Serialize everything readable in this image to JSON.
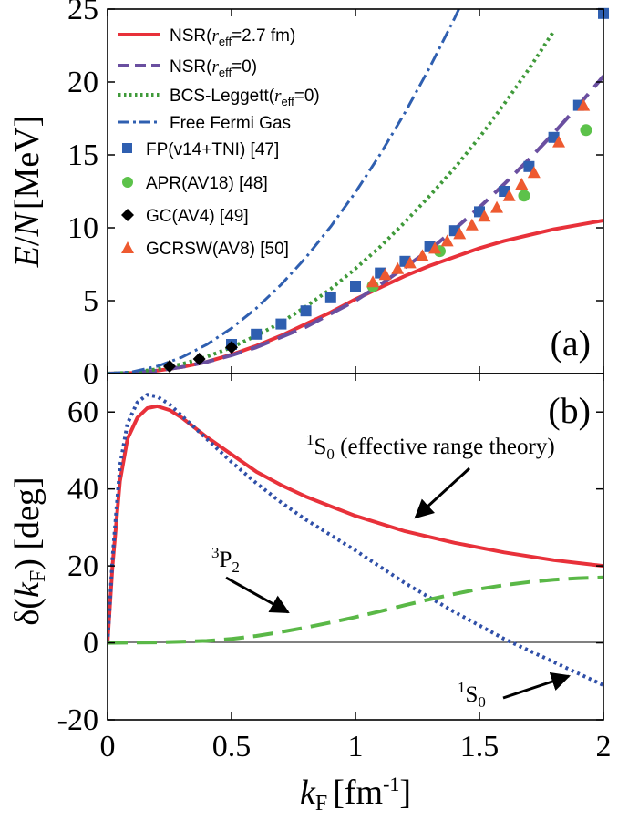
{
  "chart_data": [
    {
      "panel_label": "(a)",
      "type": "line",
      "ylabel": "E/N [MeV]",
      "ylabel_parts": {
        "sym1": "E",
        "slash": "/",
        "sym2": "N",
        "unit": "[MeV]"
      },
      "xlim": [
        0,
        2
      ],
      "ylim": [
        0,
        25
      ],
      "yticks": [
        "0",
        "5",
        "10",
        "15",
        "20",
        "25"
      ],
      "series": [
        {
          "name": "NSR(r_eff=2.7 fm)",
          "legend_pre": "NSR(",
          "legend_sym": "r",
          "legend_sub": "eff",
          "legend_post": "=2.7 fm)",
          "style": "solid",
          "color": "#e8313a",
          "x": [
            0,
            0.1,
            0.2,
            0.3,
            0.4,
            0.5,
            0.6,
            0.7,
            0.8,
            0.9,
            1.0,
            1.1,
            1.2,
            1.3,
            1.4,
            1.5,
            1.6,
            1.7,
            1.8,
            1.9,
            2.0
          ],
          "y": [
            0,
            0.05,
            0.2,
            0.45,
            0.8,
            1.3,
            1.9,
            2.6,
            3.4,
            4.2,
            5.1,
            5.9,
            6.7,
            7.4,
            8.0,
            8.6,
            9.1,
            9.5,
            9.9,
            10.2,
            10.5
          ]
        },
        {
          "name": "NSR(r_eff=0)",
          "legend_pre": "NSR(",
          "legend_sym": "r",
          "legend_sub": "eff",
          "legend_post": "=0)",
          "style": "dash",
          "color": "#6a4fa0",
          "x": [
            0,
            0.1,
            0.2,
            0.3,
            0.4,
            0.5,
            0.6,
            0.7,
            0.8,
            0.9,
            1.0,
            1.1,
            1.2,
            1.3,
            1.4,
            1.5,
            1.6,
            1.7,
            1.8,
            1.9,
            2.0
          ],
          "y": [
            0,
            0.05,
            0.2,
            0.45,
            0.8,
            1.25,
            1.8,
            2.5,
            3.2,
            4.1,
            5.0,
            6.1,
            7.3,
            8.5,
            9.9,
            11.4,
            13.0,
            14.7,
            16.5,
            18.4,
            20.4
          ]
        },
        {
          "name": "BCS-Leggett(r_eff=0)",
          "legend_pre": "BCS-Leggett(",
          "legend_sym": "r",
          "legend_sub": "eff",
          "legend_post": "=0)",
          "style": "dot",
          "color": "#3f9a3a",
          "x": [
            0,
            0.1,
            0.2,
            0.3,
            0.4,
            0.5,
            0.6,
            0.7,
            0.8,
            0.9,
            1.0,
            1.1,
            1.2,
            1.3,
            1.4,
            1.5,
            1.6,
            1.7,
            1.8
          ],
          "y": [
            0,
            0.07,
            0.3,
            0.65,
            1.15,
            1.8,
            2.6,
            3.5,
            4.6,
            5.8,
            7.2,
            8.7,
            10.4,
            12.2,
            14.1,
            16.2,
            18.5,
            20.9,
            23.5
          ]
        },
        {
          "name": "Free Fermi Gas",
          "style": "dashdot",
          "color": "#2f5fb0",
          "x": [
            0,
            0.1,
            0.2,
            0.3,
            0.4,
            0.5,
            0.6,
            0.7,
            0.8,
            0.9,
            1.0,
            1.1,
            1.2,
            1.3,
            1.4,
            1.5
          ],
          "y": [
            0,
            0.12,
            0.5,
            1.12,
            1.99,
            3.11,
            4.48,
            6.1,
            7.96,
            10.08,
            12.44,
            15.05,
            17.91,
            21.02,
            24.38,
            27.99
          ]
        }
      ],
      "markers": [
        {
          "name": "FP(v14+TNI) [47]",
          "shape": "square",
          "color": "#2f5fb0",
          "x": [
            0.5,
            0.6,
            0.7,
            0.8,
            0.9,
            1.0,
            1.1,
            1.2,
            1.3,
            1.4,
            1.5,
            1.6,
            1.7,
            1.8,
            1.9,
            2.0
          ],
          "y": [
            2.0,
            2.7,
            3.4,
            4.3,
            5.2,
            6.0,
            6.9,
            7.7,
            8.7,
            9.8,
            11.1,
            12.5,
            14.2,
            16.2,
            18.4,
            24.7
          ]
        },
        {
          "name": "APR(AV18) [48]",
          "shape": "circle",
          "color": "#5cc24a",
          "x": [
            1.07,
            1.34,
            1.68,
            1.93
          ],
          "y": [
            6.0,
            8.4,
            12.2,
            16.7
          ]
        },
        {
          "name": "GC(AV4) [49]",
          "shape": "diamond",
          "color": "#000000",
          "x": [
            0.25,
            0.37,
            0.5
          ],
          "y": [
            0.5,
            1.0,
            1.8
          ]
        },
        {
          "name": "GCRSW(AV8) [50]",
          "shape": "triangle",
          "color": "#ee5a30",
          "x": [
            1.07,
            1.12,
            1.17,
            1.22,
            1.27,
            1.32,
            1.37,
            1.42,
            1.47,
            1.52,
            1.57,
            1.62,
            1.67,
            1.72,
            1.82,
            1.92
          ],
          "y": [
            6.3,
            6.8,
            7.2,
            7.6,
            8.1,
            8.6,
            9.1,
            9.6,
            10.2,
            10.8,
            11.4,
            12.2,
            13.0,
            13.8,
            15.9,
            18.4
          ]
        }
      ],
      "legend": "top-left"
    },
    {
      "panel_label": "(b)",
      "type": "line",
      "xlabel": "k_F [fm^-1]",
      "xlabel_parts": {
        "sym": "k",
        "sub": "F",
        "unit": "[fm",
        "exp": "-1",
        "close": "]"
      },
      "ylabel": "δ(k_F) [deg]",
      "ylabel_parts": {
        "pre": "δ(",
        "sym": "k",
        "sub": "F",
        "post": ") [deg]"
      },
      "xlim": [
        0,
        2
      ],
      "ylim": [
        -20,
        70
      ],
      "xticks": [
        "0",
        "0.5",
        "1",
        "1.5",
        "2"
      ],
      "yticks": [
        "-20",
        "0",
        "20",
        "40",
        "60"
      ],
      "series": [
        {
          "name": "1S0 (effective range theory)",
          "style": "solid",
          "color": "#e8313a",
          "x": [
            0,
            0.02,
            0.05,
            0.08,
            0.12,
            0.16,
            0.2,
            0.25,
            0.3,
            0.4,
            0.5,
            0.6,
            0.7,
            0.8,
            0.9,
            1.0,
            1.2,
            1.4,
            1.6,
            1.8,
            2.0
          ],
          "y": [
            0,
            20,
            42,
            53,
            58.5,
            61,
            61.5,
            60.5,
            58.5,
            53.5,
            49,
            44.5,
            41,
            38,
            35.5,
            33,
            29,
            26,
            23.5,
            21.5,
            20
          ]
        },
        {
          "name": "1S0",
          "style": "dot",
          "color": "#2f4fa8",
          "x": [
            0,
            0.02,
            0.05,
            0.08,
            0.12,
            0.16,
            0.2,
            0.25,
            0.3,
            0.4,
            0.5,
            0.6,
            0.7,
            0.8,
            0.9,
            1.0,
            1.2,
            1.4,
            1.6,
            1.8,
            2.0
          ],
          "y": [
            0,
            22,
            46,
            57,
            62.5,
            64.5,
            64,
            62,
            59,
            53,
            47,
            41.5,
            36.5,
            32,
            28,
            24,
            15.5,
            8,
            1,
            -5,
            -11
          ]
        },
        {
          "name": "3P2",
          "style": "dash",
          "color": "#5ab847",
          "x": [
            0,
            0.2,
            0.4,
            0.5,
            0.6,
            0.7,
            0.8,
            0.9,
            1.0,
            1.1,
            1.2,
            1.3,
            1.4,
            1.5,
            1.6,
            1.7,
            1.8,
            1.9,
            2.0
          ],
          "y": [
            0,
            0.1,
            0.5,
            1.0,
            1.8,
            2.8,
            4.0,
            5.3,
            6.7,
            8.2,
            9.8,
            11.3,
            12.7,
            14.0,
            15.0,
            15.8,
            16.4,
            16.8,
            17.0
          ]
        }
      ],
      "annotations": [
        {
          "id": "ert",
          "sup": "1",
          "main": "S",
          "sub": "0",
          "rest": " (effective range theory)"
        },
        {
          "id": "p2",
          "sup": "3",
          "main": "P",
          "sub": "2",
          "rest": ""
        },
        {
          "id": "s0",
          "sup": "1",
          "main": "S",
          "sub": "0",
          "rest": ""
        }
      ]
    }
  ]
}
